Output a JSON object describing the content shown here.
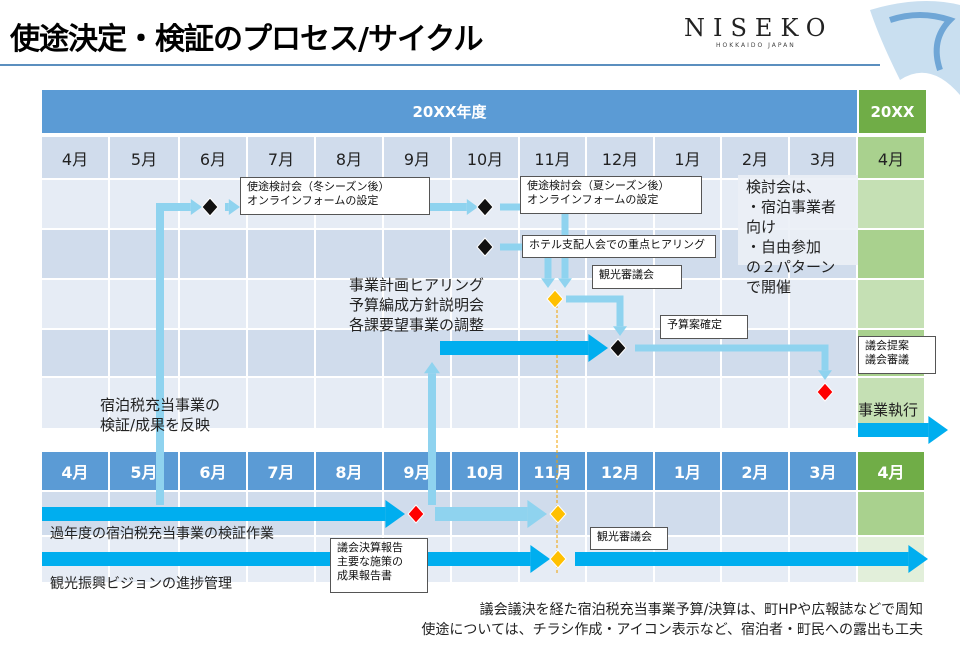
{
  "title": "使途決定・検証のプロセス/サイクル",
  "logo": {
    "name": "NISEKO",
    "sub": "HOKKAIDO JAPAN"
  },
  "header": {
    "year": "20XX年度",
    "next_year": "20XX"
  },
  "months": [
    "4月",
    "5月",
    "6月",
    "7月",
    "8月",
    "9月",
    "10月",
    "11月",
    "12月",
    "1月",
    "2月",
    "3月",
    "4月"
  ],
  "callouts": {
    "winter": [
      "使途検討会（冬シーズン後）",
      "オンラインフォームの設定"
    ],
    "summer": [
      "使途検討会（夏シーズン後）",
      "オンラインフォームの設定"
    ],
    "hotel": "ホテル支配人会での重点ヒアリング",
    "council_upper": "観光審議会",
    "budget": "予算案確定",
    "assembly": [
      "議会提案",
      "議会審議"
    ],
    "settlement": [
      "議会決算報告",
      "主要な施策の",
      "成果報告書"
    ],
    "council_lower": "観光審議会"
  },
  "note": [
    "検討会は、",
    "・宿泊事業者向け",
    "・自由参加",
    "の２パターンで開催"
  ],
  "planning": [
    "事業計画ヒアリング",
    "予算編成方針説明会",
    "各課要望事業の調整"
  ],
  "feedback": [
    "宿泊税充当事業の",
    "検証/成果を反映"
  ],
  "execution": "事業執行",
  "lower_labels": {
    "verification": "過年度の宿泊税充当事業の検証作業",
    "vision": "観光振興ビジョンの進捗管理"
  },
  "footer": [
    "議会議決を経た宿泊税充当事業予算/決算は、町HPや広報誌などで周知",
    "使途については、チラシ作成・アイコン表示など、宿泊者・町民への露出も工夫"
  ],
  "colors": {
    "header_blue": "#5b9bd5",
    "green": "#70ad47",
    "light_arrow": "#8fd3ef",
    "strong_arrow": "#00aeef",
    "gold": "#ffc000",
    "red": "#ff0000"
  }
}
